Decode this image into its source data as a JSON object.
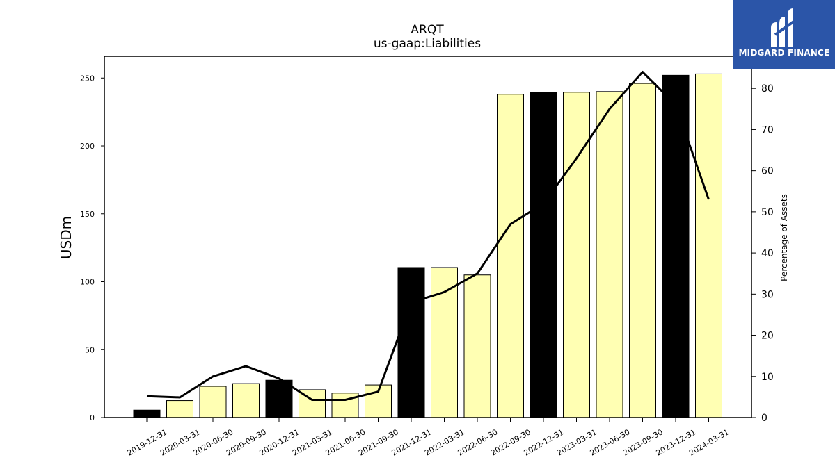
{
  "logo": {
    "brand_name": "MIDGARD FINANCE",
    "icon": "midgard-logo-icon",
    "bg_color": "#2b55a8"
  },
  "chart_data": {
    "type": "bar",
    "title": "ARQT",
    "subtitle": "us-gaap:Liabilities",
    "ylabel": "USDm",
    "y2label": "Percentage of Assets",
    "ylim": [
      0,
      266
    ],
    "y2lim": [
      0,
      87.8
    ],
    "yticks": [
      0,
      50,
      100,
      150,
      200,
      250
    ],
    "y2ticks": [
      0,
      10,
      20,
      30,
      40,
      50,
      60,
      70,
      80
    ],
    "categories": [
      "2019-12-31",
      "2020-03-31",
      "2020-06-30",
      "2020-09-30",
      "2020-12-31",
      "2021-03-31",
      "2021-06-30",
      "2021-09-30",
      "2021-12-31",
      "2022-03-31",
      "2022-06-30",
      "2022-09-30",
      "2022-12-31",
      "2023-03-31",
      "2023-06-30",
      "2023-09-30",
      "2023-12-31",
      "2024-03-31"
    ],
    "series": [
      {
        "type": "bar",
        "values": [
          5.5,
          12.5,
          23,
          25,
          27.5,
          20.5,
          18,
          24,
          110.5,
          110.5,
          105,
          238,
          239.5,
          239.5,
          240,
          246,
          252,
          253
        ]
      },
      {
        "type": "line",
        "axis": "right",
        "values": [
          5.2,
          4.9,
          10.0,
          12.5,
          9.5,
          4.3,
          4.3,
          6.3,
          28.0,
          30.5,
          35.0,
          47.0,
          52.0,
          63.0,
          75.0,
          84.0,
          76.0,
          53.0
        ]
      }
    ],
    "year_end_color": "#000000",
    "other_color": "#ffffb3",
    "line_color": "#000000",
    "grid": false,
    "legend": "none"
  }
}
